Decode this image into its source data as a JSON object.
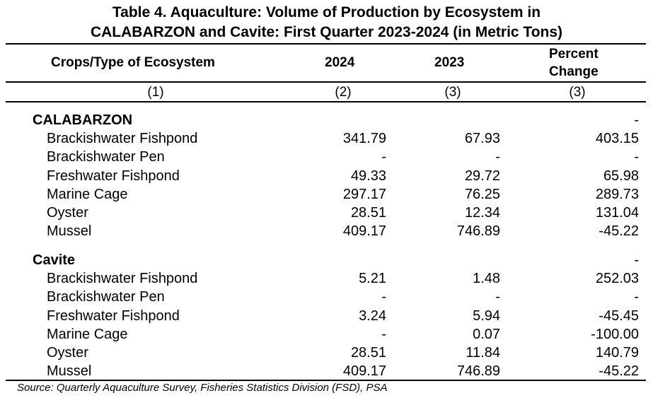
{
  "title": {
    "line1": "Table 4. Aquaculture: Volume of Production by Ecosystem in",
    "line2": "CALABARZON and Cavite: First Quarter 2023-2024 (in Metric Tons)"
  },
  "headers": {
    "col1": "Crops/Type of Ecosystem",
    "col2": "2024",
    "col3": "2023",
    "col4_line1": "Percent",
    "col4_line2": "Change"
  },
  "column_numbers": [
    "(1)",
    "(2)",
    "(3)",
    "(3)"
  ],
  "groups": [
    {
      "name": "CALABARZON",
      "pct": "-",
      "rows": [
        {
          "label": "Brackishwater Fishpond",
          "y2024": "341.79",
          "y2023": "67.93",
          "pct": "403.15"
        },
        {
          "label": "Brackishwater Pen",
          "y2024": "-",
          "y2023": "-",
          "pct": "-"
        },
        {
          "label": "Freshwater Fishpond",
          "y2024": "49.33",
          "y2023": "29.72",
          "pct": "65.98"
        },
        {
          "label": "Marine Cage",
          "y2024": "297.17",
          "y2023": "76.25",
          "pct": "289.73"
        },
        {
          "label": "Oyster",
          "y2024": "28.51",
          "y2023": "12.34",
          "pct": "131.04"
        },
        {
          "label": "Mussel",
          "y2024": "409.17",
          "y2023": "746.89",
          "pct": "-45.22"
        }
      ]
    },
    {
      "name": "Cavite",
      "pct": "-",
      "rows": [
        {
          "label": "Brackishwater Fishpond",
          "y2024": "5.21",
          "y2023": "1.48",
          "pct": "252.03"
        },
        {
          "label": "Brackishwater Pen",
          "y2024": "-",
          "y2023": "-",
          "pct": "-"
        },
        {
          "label": "Freshwater Fishpond",
          "y2024": "3.24",
          "y2023": "5.94",
          "pct": "-45.45"
        },
        {
          "label": "Marine Cage",
          "y2024": "-",
          "y2023": "0.07",
          "pct": "-100.00"
        },
        {
          "label": "Oyster",
          "y2024": "28.51",
          "y2023": "11.84",
          "pct": "140.79"
        },
        {
          "label": "Mussel",
          "y2024": "409.17",
          "y2023": "746.89",
          "pct": "-45.22"
        }
      ]
    }
  ],
  "source": "Source: Quarterly Aquaculture Survey, Fisheries Statistics Division (FSD), PSA"
}
